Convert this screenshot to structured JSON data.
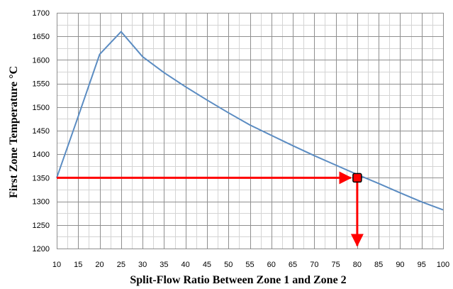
{
  "chart_data": {
    "type": "line",
    "title": "",
    "xlabel": "Split-Flow Ratio Between Zone 1 and Zone 2",
    "ylabel": "First Zone Temperature °C",
    "xlim": [
      10,
      100
    ],
    "ylim": [
      1200,
      1700
    ],
    "x_ticks": [
      "10",
      "15",
      "20",
      "25",
      "30",
      "35",
      "40",
      "45",
      "50",
      "55",
      "60",
      "65",
      "70",
      "75",
      "80",
      "85",
      "90",
      "95",
      "100"
    ],
    "y_ticks": [
      "1200",
      "1250",
      "1300",
      "1350",
      "1400",
      "1450",
      "1500",
      "1550",
      "1600",
      "1650",
      "1700"
    ],
    "grid": true,
    "series": [
      {
        "name": "",
        "color": "#5b8cc2",
        "x": [
          10,
          15,
          20,
          25,
          30,
          35,
          40,
          45,
          50,
          55,
          60,
          65,
          70,
          75,
          80,
          85,
          90,
          95,
          100
        ],
        "y": [
          1350,
          1480,
          1612,
          1660,
          1607,
          1573,
          1543,
          1515,
          1488,
          1462,
          1440,
          1418,
          1397,
          1377,
          1357,
          1338,
          1318,
          1299,
          1282
        ]
      }
    ],
    "annotation": {
      "color": "#ff0000",
      "point": {
        "x": 80,
        "y": 1350
      },
      "horizontal_from_x": 10,
      "vertical_to_y": 1200
    }
  }
}
